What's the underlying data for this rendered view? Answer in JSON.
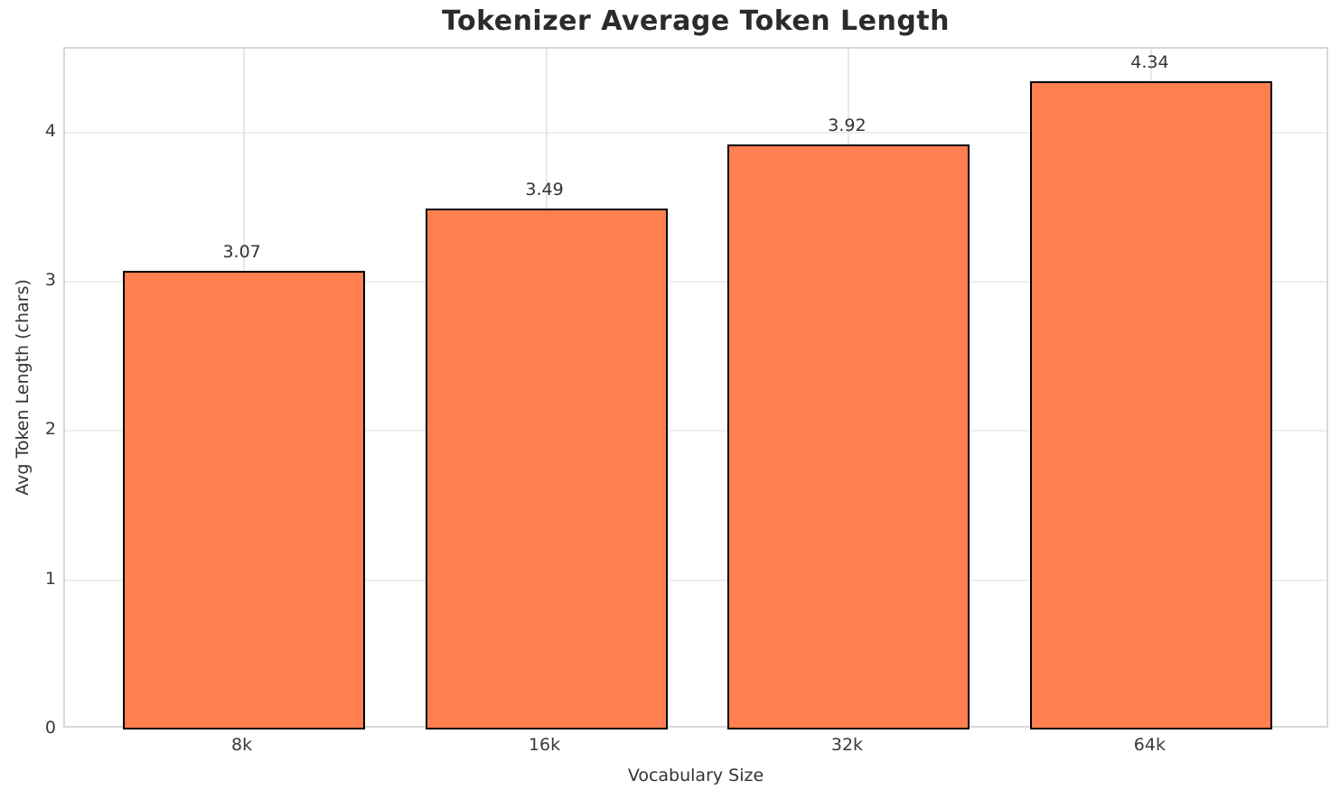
{
  "chart_data": {
    "type": "bar",
    "title": "Tokenizer Average Token Length",
    "xlabel": "Vocabulary Size",
    "ylabel": "Avg Token Length (chars)",
    "categories": [
      "8k",
      "16k",
      "32k",
      "64k"
    ],
    "values": [
      3.07,
      3.49,
      3.92,
      4.34
    ],
    "value_labels": [
      "3.07",
      "3.49",
      "3.92",
      "4.34"
    ],
    "yticks": [
      0,
      1,
      2,
      3,
      4
    ],
    "ytick_labels": [
      "0",
      "1",
      "2",
      "3",
      "4"
    ],
    "ylim": [
      0,
      4.56
    ],
    "xlim": [
      -0.59,
      3.59
    ],
    "bar_width_units": 0.8,
    "grid": true,
    "legend": "none",
    "colors": {
      "bar_fill": "#FF7F50",
      "bar_edge": "#000000",
      "grid_h": "#efefef",
      "grid_v": "#e7e7e7",
      "spine": "#d9d9d9",
      "text": "#333333",
      "title_text": "#2b2b2b",
      "background": "#ffffff"
    }
  }
}
